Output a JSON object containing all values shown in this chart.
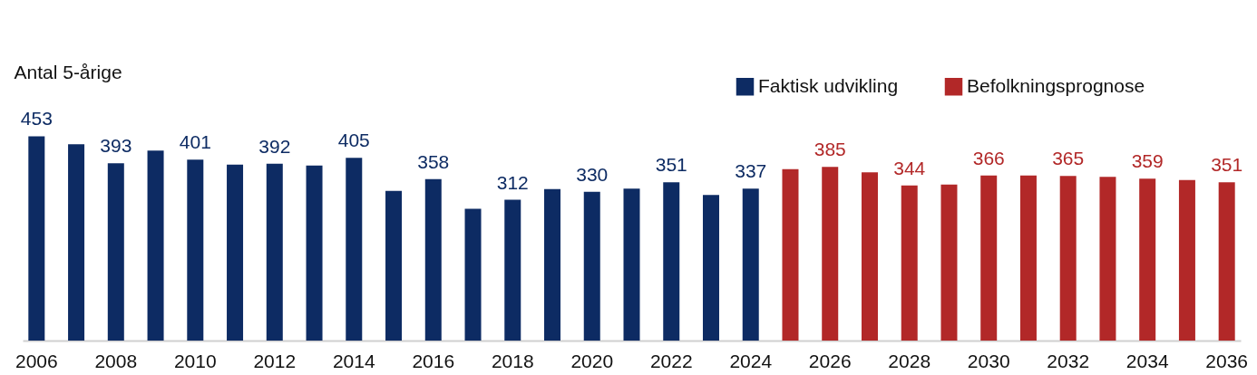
{
  "chart_data": {
    "type": "bar",
    "ylabel": "Antal 5-årige",
    "legend": "top right",
    "tick_labels": "x",
    "categories": [
      "2006",
      null,
      "2008",
      null,
      "2010",
      null,
      "2012",
      null,
      "2014",
      null,
      "2016",
      null,
      "2018",
      null,
      "2020",
      null,
      "2022",
      null,
      "2024",
      null,
      "2026",
      null,
      "2028",
      null,
      "2030",
      null,
      "2032",
      null,
      "2034",
      null,
      "2036"
    ],
    "series": [
      {
        "name": "Faktisk udvikling",
        "color": "#0d2b63",
        "values": [
          453,
          435,
          393,
          421,
          401,
          390,
          392,
          388,
          405,
          332,
          358,
          292,
          312,
          336,
          330,
          337,
          351,
          323,
          337,
          null,
          null,
          null,
          null,
          null,
          null,
          null,
          null,
          null,
          null,
          null,
          null
        ],
        "value_labels": [
          "453",
          null,
          "393",
          null,
          "401",
          null,
          "392",
          null,
          "405",
          null,
          "358",
          null,
          "312",
          null,
          "330",
          null,
          "351",
          null,
          "337",
          null,
          null,
          null,
          null,
          null,
          null,
          null,
          null,
          null,
          null,
          null,
          null
        ]
      },
      {
        "name": "Befolkningsprognose",
        "color": "#b22828",
        "values": [
          null,
          null,
          null,
          null,
          null,
          null,
          null,
          null,
          null,
          null,
          null,
          null,
          null,
          null,
          null,
          null,
          null,
          null,
          null,
          380,
          385,
          373,
          344,
          346,
          366,
          366,
          365,
          363,
          359,
          356,
          351
        ],
        "value_labels": [
          null,
          null,
          null,
          null,
          null,
          null,
          null,
          null,
          null,
          null,
          null,
          null,
          null,
          null,
          null,
          null,
          null,
          null,
          null,
          null,
          "385",
          null,
          "344",
          null,
          "366",
          null,
          "365",
          null,
          "359",
          null,
          "351"
        ]
      }
    ]
  }
}
